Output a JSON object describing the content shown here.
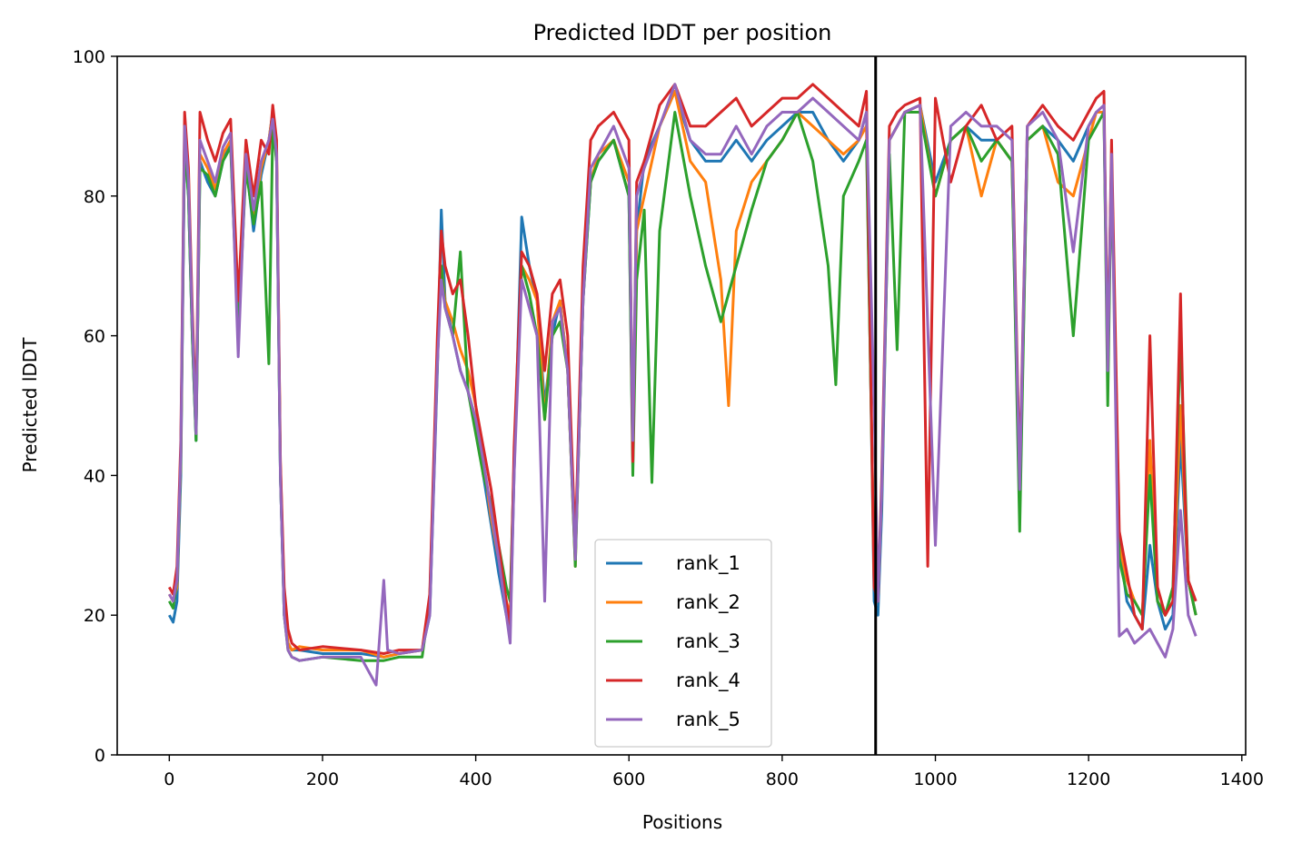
{
  "chart_data": {
    "type": "line",
    "title": "Predicted lDDT per position",
    "xlabel": "Positions",
    "ylabel": "Predicted lDDT",
    "xlim": [
      -68,
      1405
    ],
    "ylim": [
      0,
      100
    ],
    "xticks": [
      0,
      200,
      400,
      600,
      800,
      1000,
      1200,
      1400
    ],
    "yticks": [
      0,
      20,
      40,
      60,
      80,
      100
    ],
    "grid": false,
    "legend_position": "lower-center",
    "vline": {
      "x": 922,
      "color": "#000000"
    },
    "series": [
      {
        "name": "rank_1",
        "color": "#1f77b4",
        "x": [
          0,
          5,
          10,
          15,
          20,
          25,
          30,
          35,
          40,
          50,
          60,
          70,
          80,
          90,
          100,
          110,
          120,
          130,
          135,
          140,
          145,
          150,
          155,
          160,
          170,
          200,
          250,
          280,
          300,
          330,
          340,
          350,
          355,
          360,
          370,
          380,
          390,
          400,
          410,
          420,
          430,
          440,
          445,
          450,
          460,
          470,
          480,
          490,
          500,
          510,
          520,
          530,
          540,
          550,
          560,
          580,
          600,
          605,
          610,
          620,
          640,
          660,
          680,
          700,
          720,
          740,
          760,
          780,
          800,
          820,
          840,
          860,
          880,
          900,
          910,
          920,
          925,
          930,
          940,
          950,
          960,
          980,
          1000,
          1020,
          1040,
          1060,
          1080,
          1100,
          1110,
          1120,
          1140,
          1160,
          1180,
          1200,
          1210,
          1220,
          1225,
          1230,
          1240,
          1250,
          1260,
          1270,
          1280,
          1290,
          1300,
          1310,
          1320,
          1330,
          1340
        ],
        "y": [
          20,
          19,
          22,
          40,
          88,
          80,
          60,
          45,
          85,
          82,
          80,
          85,
          88,
          60,
          85,
          75,
          83,
          88,
          92,
          85,
          40,
          20,
          16,
          15,
          15,
          14.5,
          14.5,
          14,
          14.5,
          15,
          20,
          55,
          78,
          65,
          60,
          55,
          52,
          48,
          40,
          33,
          26,
          20,
          18,
          40,
          77,
          70,
          65,
          50,
          60,
          65,
          55,
          28,
          65,
          82,
          85,
          88,
          80,
          42,
          75,
          85,
          90,
          95,
          88,
          85,
          85,
          88,
          85,
          88,
          90,
          92,
          92,
          88,
          85,
          88,
          92,
          22,
          20,
          35,
          88,
          90,
          92,
          93,
          82,
          88,
          90,
          88,
          88,
          85,
          35,
          88,
          90,
          88,
          85,
          90,
          92,
          92,
          55,
          85,
          30,
          22,
          20,
          18,
          30,
          22,
          18,
          20,
          45,
          25,
          20
        ]
      },
      {
        "name": "rank_2",
        "color": "#ff7f0e",
        "x": [
          0,
          5,
          10,
          15,
          20,
          25,
          30,
          35,
          40,
          50,
          60,
          70,
          80,
          90,
          100,
          110,
          120,
          130,
          135,
          140,
          145,
          150,
          155,
          160,
          170,
          200,
          250,
          280,
          300,
          330,
          340,
          350,
          355,
          360,
          370,
          380,
          390,
          400,
          410,
          420,
          430,
          440,
          445,
          450,
          460,
          470,
          480,
          490,
          500,
          510,
          520,
          530,
          540,
          550,
          560,
          580,
          600,
          605,
          610,
          620,
          640,
          660,
          680,
          700,
          720,
          730,
          740,
          760,
          780,
          800,
          820,
          840,
          860,
          880,
          900,
          910,
          920,
          925,
          930,
          940,
          950,
          960,
          980,
          1000,
          1020,
          1040,
          1060,
          1080,
          1100,
          1110,
          1120,
          1140,
          1160,
          1180,
          1200,
          1210,
          1220,
          1225,
          1230,
          1240,
          1250,
          1260,
          1270,
          1280,
          1290,
          1300,
          1310,
          1320,
          1330,
          1340
        ],
        "y": [
          23,
          22,
          24,
          42,
          89,
          82,
          62,
          46,
          86,
          84,
          81,
          86,
          88,
          62,
          86,
          77,
          84,
          88,
          92,
          86,
          42,
          22,
          16,
          15,
          15.5,
          15,
          15,
          14,
          14.5,
          15,
          22,
          58,
          70,
          65,
          62,
          58,
          55,
          50,
          42,
          34,
          28,
          22,
          20,
          42,
          70,
          68,
          65,
          48,
          62,
          65,
          55,
          27,
          68,
          82,
          86,
          88,
          82,
          45,
          75,
          80,
          90,
          95,
          85,
          82,
          68,
          50,
          75,
          82,
          85,
          88,
          92,
          90,
          88,
          86,
          88,
          90,
          24,
          22,
          38,
          88,
          90,
          92,
          93,
          80,
          88,
          90,
          80,
          88,
          85,
          37,
          88,
          90,
          82,
          80,
          88,
          92,
          92,
          58,
          85,
          30,
          25,
          22,
          20,
          45,
          22,
          20,
          22,
          50,
          25,
          20
        ]
      },
      {
        "name": "rank_3",
        "color": "#2ca02c",
        "x": [
          0,
          5,
          10,
          15,
          20,
          25,
          30,
          35,
          40,
          50,
          60,
          70,
          80,
          90,
          100,
          110,
          120,
          130,
          135,
          140,
          145,
          150,
          155,
          160,
          170,
          200,
          250,
          280,
          300,
          330,
          340,
          350,
          355,
          360,
          370,
          380,
          390,
          400,
          410,
          420,
          430,
          440,
          445,
          450,
          460,
          470,
          480,
          490,
          500,
          510,
          520,
          530,
          540,
          550,
          560,
          580,
          600,
          605,
          610,
          620,
          630,
          640,
          660,
          680,
          700,
          720,
          740,
          760,
          780,
          800,
          820,
          840,
          860,
          870,
          880,
          900,
          910,
          920,
          925,
          930,
          940,
          950,
          960,
          980,
          1000,
          1020,
          1040,
          1060,
          1080,
          1100,
          1110,
          1120,
          1140,
          1160,
          1180,
          1200,
          1210,
          1220,
          1225,
          1230,
          1240,
          1250,
          1260,
          1270,
          1280,
          1290,
          1300,
          1310,
          1320,
          1330,
          1340
        ],
        "y": [
          22,
          21,
          25,
          42,
          88,
          80,
          60,
          45,
          84,
          83,
          80,
          85,
          87,
          60,
          84,
          76,
          82,
          56,
          90,
          85,
          40,
          20,
          15,
          14,
          13.5,
          14,
          13.5,
          13.5,
          14,
          14,
          22,
          56,
          70,
          64,
          60,
          72,
          52,
          46,
          40,
          36,
          30,
          24,
          22,
          42,
          70,
          66,
          60,
          48,
          60,
          62,
          55,
          27,
          65,
          82,
          85,
          88,
          80,
          40,
          68,
          78,
          39,
          75,
          92,
          80,
          70,
          62,
          70,
          78,
          85,
          88,
          92,
          85,
          70,
          53,
          80,
          85,
          88,
          26,
          22,
          38,
          86,
          58,
          92,
          92,
          80,
          88,
          90,
          85,
          88,
          85,
          32,
          88,
          90,
          86,
          60,
          88,
          90,
          92,
          50,
          85,
          28,
          23,
          22,
          20,
          40,
          22,
          20,
          24,
          60,
          25,
          20
        ]
      },
      {
        "name": "rank_4",
        "color": "#d62728",
        "x": [
          0,
          5,
          10,
          15,
          20,
          25,
          30,
          35,
          40,
          50,
          60,
          70,
          80,
          90,
          100,
          110,
          120,
          130,
          135,
          140,
          145,
          150,
          155,
          160,
          170,
          200,
          250,
          280,
          300,
          330,
          340,
          350,
          355,
          360,
          370,
          380,
          390,
          400,
          410,
          420,
          430,
          440,
          445,
          450,
          460,
          470,
          480,
          490,
          500,
          510,
          520,
          530,
          540,
          550,
          560,
          580,
          600,
          605,
          610,
          620,
          640,
          660,
          680,
          700,
          720,
          740,
          760,
          780,
          800,
          820,
          840,
          860,
          880,
          900,
          910,
          920,
          925,
          930,
          940,
          950,
          960,
          980,
          990,
          1000,
          1020,
          1040,
          1060,
          1080,
          1100,
          1110,
          1120,
          1140,
          1160,
          1180,
          1200,
          1210,
          1220,
          1225,
          1230,
          1240,
          1250,
          1260,
          1270,
          1280,
          1290,
          1300,
          1310,
          1320,
          1325,
          1330,
          1340
        ],
        "y": [
          24,
          23,
          27,
          45,
          92,
          84,
          64,
          48,
          92,
          88,
          85,
          89,
          91,
          65,
          88,
          80,
          88,
          86,
          93,
          88,
          42,
          24,
          18,
          16,
          15,
          15.5,
          15,
          14.5,
          15,
          15,
          23,
          60,
          75,
          70,
          66,
          68,
          60,
          50,
          44,
          38,
          30,
          22,
          18,
          44,
          72,
          70,
          66,
          55,
          66,
          68,
          60,
          30,
          70,
          88,
          90,
          92,
          88,
          42,
          82,
          85,
          93,
          96,
          90,
          90,
          92,
          94,
          90,
          92,
          94,
          94,
          96,
          94,
          92,
          90,
          95,
          24,
          22,
          40,
          90,
          92,
          93,
          94,
          27,
          94,
          82,
          90,
          93,
          88,
          90,
          40,
          90,
          93,
          90,
          88,
          92,
          94,
          95,
          56,
          88,
          32,
          26,
          20,
          18,
          60,
          24,
          20,
          22,
          66,
          40,
          25,
          22
        ]
      },
      {
        "name": "rank_5",
        "color": "#9467bd",
        "x": [
          0,
          5,
          10,
          15,
          20,
          25,
          30,
          35,
          40,
          50,
          60,
          70,
          80,
          90,
          100,
          110,
          120,
          130,
          135,
          140,
          145,
          150,
          155,
          160,
          170,
          200,
          250,
          270,
          280,
          285,
          300,
          330,
          340,
          350,
          355,
          360,
          370,
          380,
          390,
          400,
          410,
          420,
          430,
          440,
          445,
          450,
          460,
          470,
          480,
          490,
          500,
          510,
          520,
          530,
          540,
          550,
          560,
          580,
          600,
          605,
          610,
          620,
          640,
          660,
          680,
          700,
          720,
          740,
          760,
          780,
          800,
          820,
          840,
          860,
          880,
          900,
          910,
          920,
          925,
          930,
          940,
          950,
          960,
          980,
          1000,
          1020,
          1040,
          1060,
          1080,
          1100,
          1110,
          1120,
          1140,
          1160,
          1180,
          1200,
          1210,
          1220,
          1225,
          1230,
          1240,
          1250,
          1260,
          1270,
          1280,
          1290,
          1300,
          1310,
          1320,
          1330,
          1340
        ],
        "y": [
          23,
          22,
          25,
          43,
          90,
          82,
          62,
          46,
          88,
          85,
          82,
          87,
          89,
          57,
          86,
          78,
          85,
          88,
          91,
          86,
          40,
          20,
          15,
          14,
          13.5,
          14,
          14,
          10,
          25,
          15,
          14.5,
          15,
          20,
          56,
          68,
          64,
          60,
          55,
          52,
          48,
          42,
          35,
          28,
          20,
          16,
          40,
          68,
          64,
          60,
          22,
          62,
          64,
          55,
          28,
          65,
          84,
          86,
          90,
          84,
          45,
          80,
          84,
          90,
          96,
          88,
          86,
          86,
          90,
          86,
          90,
          92,
          92,
          94,
          92,
          90,
          88,
          92,
          50,
          22,
          38,
          88,
          90,
          92,
          93,
          30,
          90,
          92,
          90,
          90,
          88,
          38,
          90,
          92,
          88,
          72,
          90,
          92,
          93,
          55,
          86,
          17,
          18,
          16,
          17,
          18,
          16,
          14,
          18,
          35,
          20,
          17
        ]
      }
    ]
  }
}
